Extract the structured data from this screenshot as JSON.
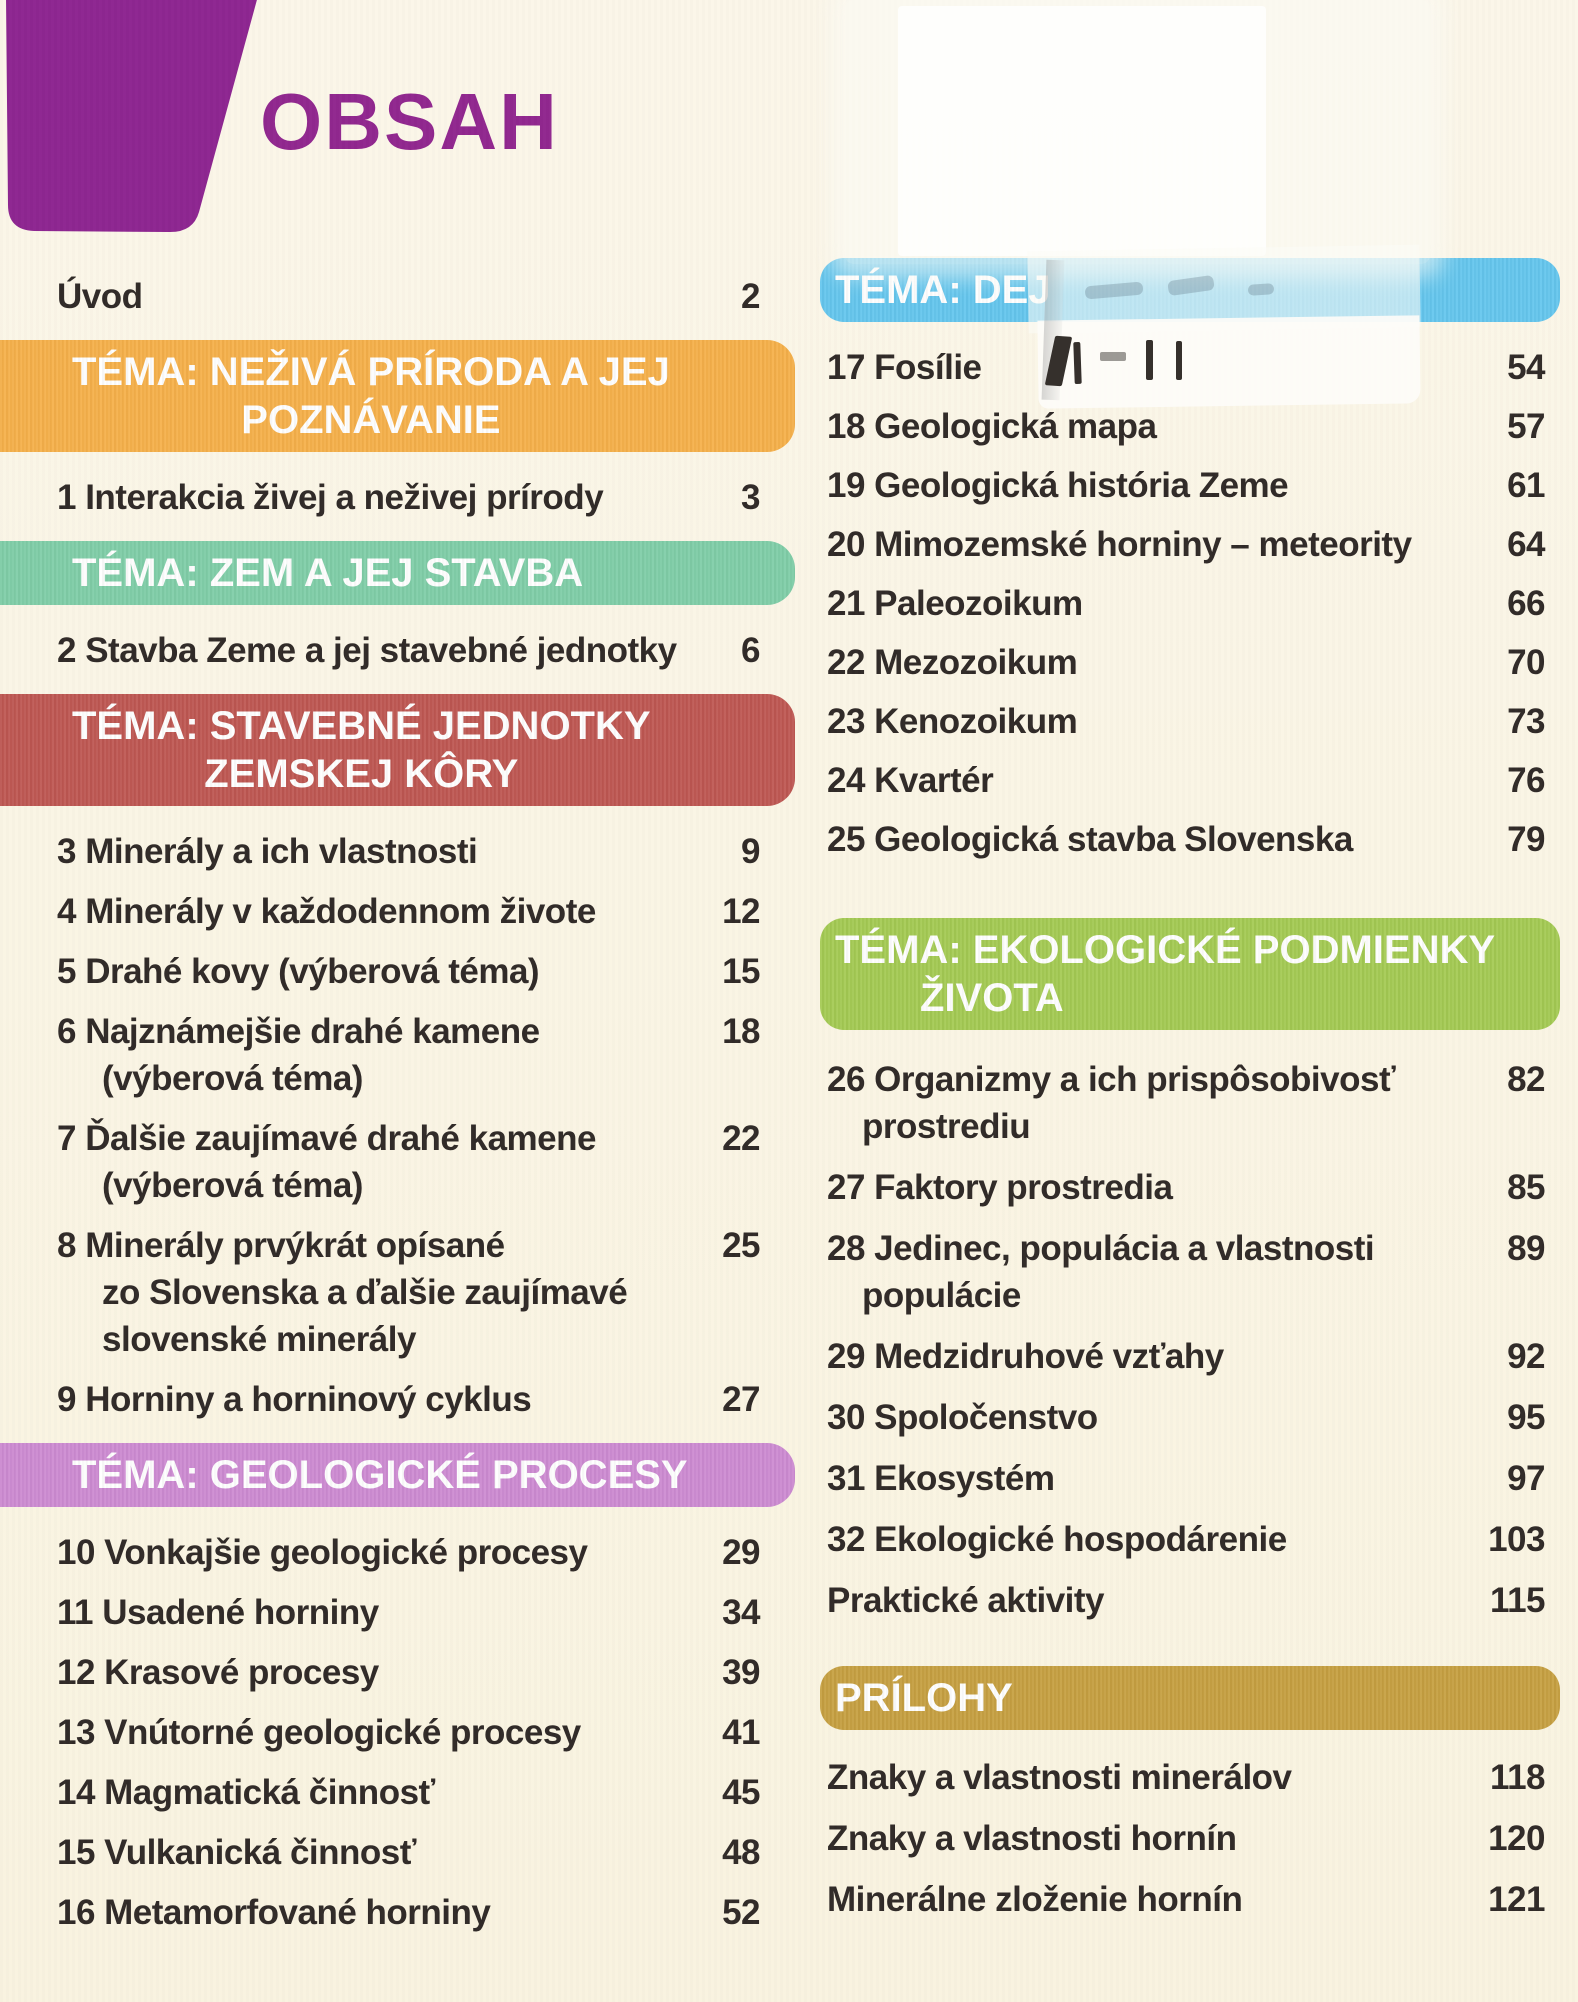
{
  "header": {
    "title": "OBSAH",
    "title_color": "#91278F",
    "corner_shape_color": "#8E2691"
  },
  "page": {
    "background_color": "#FAF5E6",
    "text_color": "#312B28"
  },
  "left_column": {
    "blocks": [
      {
        "type": "entry",
        "lines": [
          "Úvod"
        ],
        "page": "2"
      },
      {
        "type": "banner",
        "theme": "orange",
        "color": "#F6B04A",
        "lines": [
          "TÉMA: NEŽIVÁ PRÍRODA A JEJ",
          "POZNÁVANIE"
        ]
      },
      {
        "type": "entry",
        "lines": [
          "1 Interakcia živej a neživej prírody"
        ],
        "page": "3"
      },
      {
        "type": "banner",
        "theme": "mint",
        "color": "#80CEA8",
        "lines": [
          "TÉMA: ZEM A JEJ STAVBA"
        ]
      },
      {
        "type": "entry",
        "lines": [
          "2 Stavba Zeme a jej stavebné jednotky"
        ],
        "page": "6"
      },
      {
        "type": "banner",
        "theme": "red",
        "color": "#BE5752",
        "lines": [
          "TÉMA: STAVEBNÉ JEDNOTKY",
          "ZEMSKEJ KÔRY"
        ]
      },
      {
        "type": "entry",
        "lines": [
          "3 Minerály a ich vlastnosti"
        ],
        "page": "9"
      },
      {
        "type": "entry",
        "lines": [
          "4 Minerály v každodennom živote"
        ],
        "page": "12"
      },
      {
        "type": "entry",
        "lines": [
          "5 Drahé kovy (výberová téma)"
        ],
        "page": "15"
      },
      {
        "type": "entry",
        "lines": [
          "6 Najznámejšie drahé kamene",
          "(výberová téma)"
        ],
        "page": "18"
      },
      {
        "type": "entry",
        "lines": [
          "7 Ďalšie zaujímavé drahé kamene",
          "(výberová téma)"
        ],
        "page": "22"
      },
      {
        "type": "entry",
        "lines": [
          "8 Minerály prvýkrát opísané",
          "zo Slovenska a ďalšie zaujímavé",
          "slovenské minerály"
        ],
        "page": "25"
      },
      {
        "type": "entry",
        "lines": [
          "9 Horniny a horninový cyklus"
        ],
        "page": "27"
      },
      {
        "type": "banner",
        "theme": "orchid",
        "color": "#CD8BD2",
        "lines": [
          "TÉMA: GEOLOGICKÉ PROCESY"
        ]
      },
      {
        "type": "entry",
        "lines": [
          "10 Vonkajšie geologické procesy"
        ],
        "page": "29"
      },
      {
        "type": "entry",
        "lines": [
          "11 Usadené horniny"
        ],
        "page": "34"
      },
      {
        "type": "entry",
        "lines": [
          "12 Krasové procesy"
        ],
        "page": "39"
      },
      {
        "type": "entry",
        "lines": [
          "13 Vnútorné geologické procesy"
        ],
        "page": "41"
      },
      {
        "type": "entry",
        "lines": [
          "14 Magmatická činnosť"
        ],
        "page": "45"
      },
      {
        "type": "entry",
        "lines": [
          "15 Vulkanická činnosť"
        ],
        "page": "48"
      },
      {
        "type": "entry",
        "lines": [
          "16 Metamorfované horniny"
        ],
        "page": "52"
      }
    ]
  },
  "right_column": {
    "blocks": [
      {
        "type": "banner",
        "theme": "blue",
        "color": "#64C6EE",
        "lines": [
          "TÉMA: DEJ"
        ]
      },
      {
        "type": "entry",
        "lines": [
          "17 Fosílie"
        ],
        "page": "54"
      },
      {
        "type": "entry",
        "lines": [
          "18 Geologická mapa"
        ],
        "page": "57"
      },
      {
        "type": "entry",
        "lines": [
          "19 Geologická história Zeme"
        ],
        "page": "61"
      },
      {
        "type": "entry",
        "lines": [
          "20 Mimozemské horniny – meteority"
        ],
        "page": "64"
      },
      {
        "type": "entry",
        "lines": [
          "21 Paleozoikum"
        ],
        "page": "66"
      },
      {
        "type": "entry",
        "lines": [
          "22 Mezozoikum"
        ],
        "page": "70"
      },
      {
        "type": "entry",
        "lines": [
          "23 Kenozoikum"
        ],
        "page": "73"
      },
      {
        "type": "entry",
        "lines": [
          "24 Kvartér"
        ],
        "page": "76"
      },
      {
        "type": "entry",
        "lines": [
          "25 Geologická stavba Slovenska"
        ],
        "page": "79"
      },
      {
        "type": "banner",
        "theme": "lime",
        "color": "#A4CA53",
        "lines": [
          "TÉMA: EKOLOGICKÉ PODMIENKY",
          "ŽIVOTA"
        ]
      },
      {
        "type": "entry",
        "lines": [
          "26 Organizmy a ich prispôsobivosť",
          "prostrediu"
        ],
        "page": "82"
      },
      {
        "type": "entry",
        "lines": [
          "27 Faktory prostredia"
        ],
        "page": "85"
      },
      {
        "type": "entry",
        "lines": [
          "28 Jedinec, populácia a vlastnosti",
          "populácie"
        ],
        "page": "89"
      },
      {
        "type": "entry",
        "lines": [
          "29 Medzidruhové vzťahy"
        ],
        "page": "92"
      },
      {
        "type": "entry",
        "lines": [
          "30 Spoločenstvo"
        ],
        "page": "95"
      },
      {
        "type": "entry",
        "lines": [
          "31 Ekosystém"
        ],
        "page": "97"
      },
      {
        "type": "entry",
        "lines": [
          "32 Ekologické hospodárenie"
        ],
        "page": "103"
      },
      {
        "type": "entry",
        "lines": [
          "Praktické aktivity"
        ],
        "page": "115"
      },
      {
        "type": "banner",
        "theme": "gold",
        "color": "#C6A041",
        "lines": [
          "PRÍLOHY"
        ]
      },
      {
        "type": "entry",
        "lines": [
          "Znaky a vlastnosti minerálov"
        ],
        "page": "118"
      },
      {
        "type": "entry",
        "lines": [
          "Znaky a vlastnosti hornín"
        ],
        "page": "120"
      },
      {
        "type": "entry",
        "lines": [
          "Minerálne zloženie hornín"
        ],
        "page": "121"
      }
    ]
  },
  "artifacts": {
    "obscured_banner_visible_text": "TÉMA: DEJ",
    "correction_tape_over_banner": true,
    "ink_marks_visible": true
  }
}
